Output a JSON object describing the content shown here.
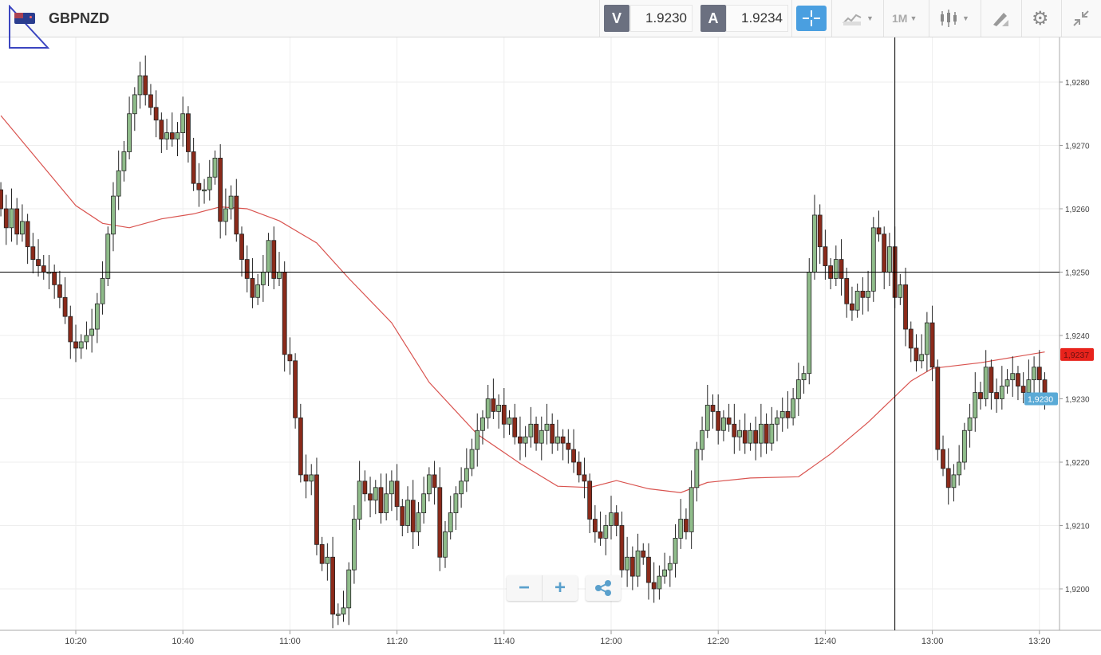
{
  "header": {
    "symbol": "GBPNZD",
    "sell_label": "V",
    "sell_price": "1.9230",
    "buy_label": "A",
    "buy_price": "1.9234",
    "timeframe": "1M",
    "icons": [
      "flag-gb-nz-icon",
      "crosshair-icon",
      "compare-chart-icon",
      "chart-type-candles-icon",
      "drawing-tools-icon",
      "gear-icon",
      "collapse-icon"
    ]
  },
  "controls": {
    "zoom_out": "−",
    "zoom_in": "+",
    "share_icon": "share-icon"
  },
  "colors": {
    "up": "#8fbc8a",
    "down": "#8b2a1a",
    "ma": "#d9534f",
    "last_price_ma": "#e8231c",
    "last_price": "#5aaad6",
    "crosshair_button": "#4a9fe0"
  },
  "chart_data": {
    "type": "candlestick",
    "interval": "1M",
    "start": "10:06",
    "close": [
      1.926,
      1.9257,
      1.926,
      1.9256,
      1.9258,
      1.9254,
      1.9252,
      1.9251,
      1.925,
      1.925,
      1.9248,
      1.9246,
      1.9243,
      1.9239,
      1.9238,
      1.9239,
      1.924,
      1.9241,
      1.9245,
      1.9249,
      1.9256,
      1.9262,
      1.9266,
      1.9269,
      1.9275,
      1.9278,
      1.9281,
      1.9278,
      1.9276,
      1.9274,
      1.9271,
      1.9272,
      1.9271,
      1.9272,
      1.9275,
      1.9269,
      1.9264,
      1.9263,
      1.9263,
      1.9265,
      1.9268,
      1.9258,
      1.926,
      1.9262,
      1.9256,
      1.9252,
      1.9249,
      1.9246,
      1.9248,
      1.925,
      1.9255,
      1.9249,
      1.925,
      1.9237,
      1.9236,
      1.9227,
      1.9218,
      1.9217,
      1.9218,
      1.9207,
      1.9204,
      1.9205,
      1.9196,
      1.9196,
      1.9197,
      1.9203,
      1.9211,
      1.9217,
      1.9215,
      1.9214,
      1.9216,
      1.9212,
      1.9215,
      1.9217,
      1.9213,
      1.921,
      1.9214,
      1.9209,
      1.9212,
      1.9215,
      1.9218,
      1.9216,
      1.9205,
      1.9209,
      1.9212,
      1.9215,
      1.9217,
      1.9219,
      1.9222,
      1.9225,
      1.9227,
      1.923,
      1.9228,
      1.9229,
      1.9226,
      1.9227,
      1.9224,
      1.9223,
      1.9224,
      1.9226,
      1.9223,
      1.9225,
      1.9226,
      1.9223,
      1.9224,
      1.9223,
      1.9222,
      1.922,
      1.9218,
      1.9217,
      1.9211,
      1.9209,
      1.9208,
      1.921,
      1.9212,
      1.921,
      1.9203,
      1.9205,
      1.9202,
      1.9206,
      1.9205,
      1.9201,
      1.92,
      1.9202,
      1.9203,
      1.9204,
      1.9208,
      1.9211,
      1.9209,
      1.9216,
      1.9222,
      1.9225,
      1.9229,
      1.9228,
      1.9225,
      1.9227,
      1.9226,
      1.9224,
      1.9225,
      1.9223,
      1.9225,
      1.9223,
      1.9226,
      1.9223,
      1.9226,
      1.9227,
      1.9228,
      1.9227,
      1.923,
      1.9233,
      1.9234,
      1.925,
      1.9259,
      1.9254,
      1.9251,
      1.9249,
      1.9252,
      1.9249,
      1.9245,
      1.9244,
      1.9247,
      1.9246,
      1.9247,
      1.9257,
      1.9256,
      1.925,
      1.9254,
      1.9246,
      1.9248,
      1.9241,
      1.9238,
      1.9236,
      1.9237,
      1.9242,
      1.9235,
      1.9222,
      1.9219,
      1.9216,
      1.9218,
      1.922,
      1.9225,
      1.9227,
      1.9231,
      1.923,
      1.9235,
      1.9231,
      1.923,
      1.9232,
      1.9233,
      1.9234,
      1.9232,
      1.9231,
      1.9233,
      1.9235,
      1.9233,
      1.923
    ],
    "moving_average": [
      [
        "10:06",
        1.92747
      ],
      [
        "10:20",
        1.92605
      ],
      [
        "10:25",
        1.92577
      ],
      [
        "10:30",
        1.9257
      ],
      [
        "10:36",
        1.92584
      ],
      [
        "10:42",
        1.92592
      ],
      [
        "10:47",
        1.92603
      ],
      [
        "10:52",
        1.926
      ],
      [
        "10:58",
        1.92581
      ],
      [
        "11:05",
        1.92546
      ],
      [
        "11:11",
        1.9249
      ],
      [
        "11:19",
        1.9242
      ],
      [
        "11:26",
        1.92326
      ],
      [
        "11:35",
        1.92244
      ],
      [
        "11:43",
        1.92198
      ],
      [
        "11:50",
        1.92162
      ],
      [
        "11:56",
        1.9216
      ],
      [
        "12:01",
        1.92171
      ],
      [
        "12:07",
        1.92158
      ],
      [
        "12:13",
        1.92152
      ],
      [
        "12:18",
        1.92168
      ],
      [
        "12:26",
        1.92175
      ],
      [
        "12:35",
        1.92177
      ],
      [
        "12:41",
        1.92213
      ],
      [
        "12:48",
        1.92263
      ],
      [
        "12:56",
        1.92328
      ],
      [
        "13:00",
        1.92348
      ],
      [
        "13:09",
        1.92357
      ],
      [
        "13:21",
        1.92374
      ]
    ],
    "x_ticks": [
      "10:20",
      "10:40",
      "11:00",
      "11:20",
      "11:40",
      "12:00",
      "12:20",
      "12:40",
      "13:00",
      "13:20"
    ],
    "y_ticks": [
      "1,9200",
      "1,9210",
      "1,9220",
      "1,9230",
      "1,9240",
      "1,9250",
      "1,9260",
      "1,9270",
      "1,9280"
    ],
    "ylim": [
      1.9193,
      1.9287
    ],
    "ma_last_label": "1,9237",
    "last_price_label": "1,9230",
    "crosshair": {
      "time": "12:53",
      "price": 1.925
    },
    "grid": true
  }
}
